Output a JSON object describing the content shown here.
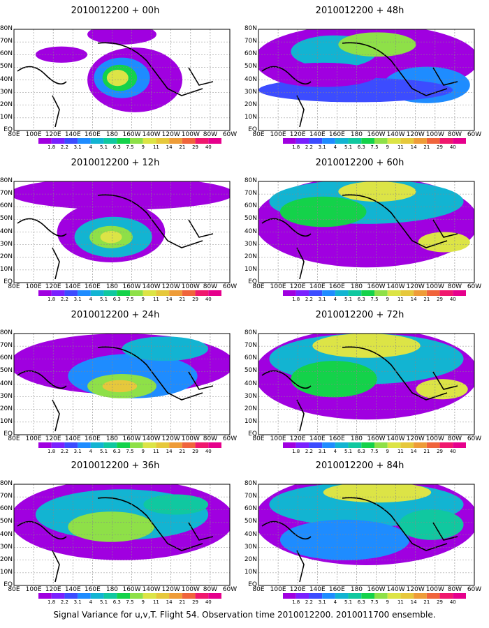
{
  "caption": "Signal Variance for u,v,T. Flight 54. Observation time 2010012200. 2010011700 ensemble.",
  "lat_labels": [
    "80N",
    "70N",
    "60N",
    "50N",
    "40N",
    "30N",
    "20N",
    "10N",
    "EQ"
  ],
  "lon_labels": [
    "80E",
    "100E",
    "120E",
    "140E",
    "160E",
    "180",
    "160W",
    "140W",
    "120W",
    "100W",
    "80W",
    "60W"
  ],
  "colorbar": {
    "labels": [
      "1.8",
      "2.2",
      "3.1",
      "4",
      "5.1",
      "6.3",
      "7.5",
      "9",
      "11",
      "14",
      "21",
      "29",
      "40"
    ],
    "colors": [
      "#a000e0",
      "#7a20ff",
      "#3c4cff",
      "#1e8cff",
      "#12b4d2",
      "#10c8a0",
      "#14d24a",
      "#8ee048",
      "#dce446",
      "#e6c83c",
      "#ee9c38",
      "#f0643c",
      "#f0186e",
      "#e6008c"
    ]
  },
  "chart_data": [
    {
      "type": "heatmap",
      "title": "2010012200 + 00h",
      "x": [
        "80E",
        "100E",
        "120E",
        "140E",
        "160E",
        "180",
        "160W",
        "140W",
        "120W",
        "100W",
        "80W",
        "60W"
      ],
      "y": [
        "EQ",
        "10N",
        "20N",
        "30N",
        "40N",
        "50N",
        "60N",
        "70N",
        "80N"
      ]
    },
    {
      "type": "heatmap",
      "title": "2010012200 + 48h",
      "x": [
        "80E",
        "100E",
        "120E",
        "140E",
        "160E",
        "180",
        "160W",
        "140W",
        "120W",
        "100W",
        "80W",
        "60W"
      ],
      "y": [
        "EQ",
        "10N",
        "20N",
        "30N",
        "40N",
        "50N",
        "60N",
        "70N",
        "80N"
      ]
    },
    {
      "type": "heatmap",
      "title": "2010012200 + 12h",
      "x": [
        "80E",
        "100E",
        "120E",
        "140E",
        "160E",
        "180",
        "160W",
        "140W",
        "120W",
        "100W",
        "80W",
        "60W"
      ],
      "y": [
        "EQ",
        "10N",
        "20N",
        "30N",
        "40N",
        "50N",
        "60N",
        "70N",
        "80N"
      ]
    },
    {
      "type": "heatmap",
      "title": "2010012200 + 60h",
      "x": [
        "80E",
        "100E",
        "120E",
        "140E",
        "160E",
        "180",
        "160W",
        "140W",
        "120W",
        "100W",
        "80W",
        "60W"
      ],
      "y": [
        "EQ",
        "10N",
        "20N",
        "30N",
        "40N",
        "50N",
        "60N",
        "70N",
        "80N"
      ]
    },
    {
      "type": "heatmap",
      "title": "2010012200 + 24h",
      "x": [
        "80E",
        "100E",
        "120E",
        "140E",
        "160E",
        "180",
        "160W",
        "140W",
        "120W",
        "100W",
        "80W",
        "60W"
      ],
      "y": [
        "EQ",
        "10N",
        "20N",
        "30N",
        "40N",
        "50N",
        "60N",
        "70N",
        "80N"
      ]
    },
    {
      "type": "heatmap",
      "title": "2010012200 + 72h",
      "x": [
        "80E",
        "100E",
        "120E",
        "140E",
        "160E",
        "180",
        "160W",
        "140W",
        "120W",
        "100W",
        "80W",
        "60W"
      ],
      "y": [
        "EQ",
        "10N",
        "20N",
        "30N",
        "40N",
        "50N",
        "60N",
        "70N",
        "80N"
      ]
    },
    {
      "type": "heatmap",
      "title": "2010012200 + 36h",
      "x": [
        "80E",
        "100E",
        "120E",
        "140E",
        "160E",
        "180",
        "160W",
        "140W",
        "120W",
        "100W",
        "80W",
        "60W"
      ],
      "y": [
        "EQ",
        "10N",
        "20N",
        "30N",
        "40N",
        "50N",
        "60N",
        "70N",
        "80N"
      ]
    },
    {
      "type": "heatmap",
      "title": "2010012200 + 84h",
      "x": [
        "80E",
        "100E",
        "120E",
        "140E",
        "160E",
        "180",
        "160W",
        "140W",
        "120W",
        "100W",
        "80W",
        "60W"
      ],
      "y": [
        "EQ",
        "10N",
        "20N",
        "30N",
        "40N",
        "50N",
        "60N",
        "70N",
        "80N"
      ]
    }
  ]
}
